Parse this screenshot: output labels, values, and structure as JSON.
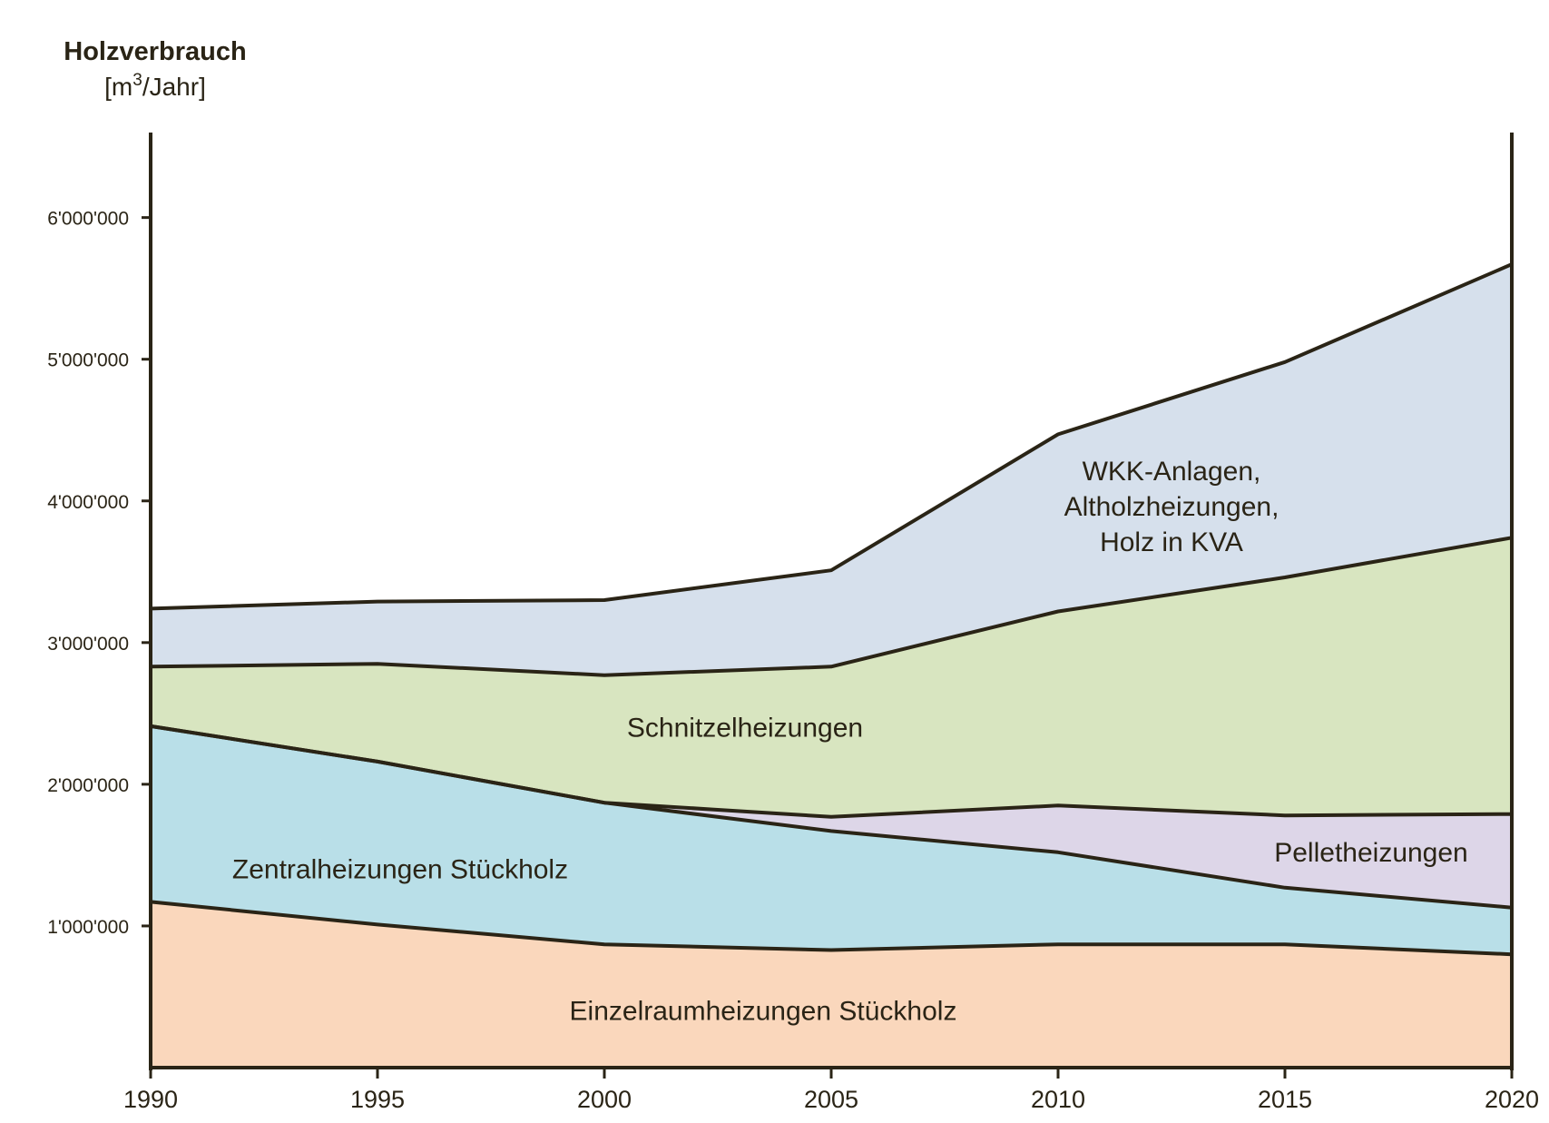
{
  "chart_data": {
    "type": "area",
    "stacked": true,
    "ytitle": "Holzverbrauch",
    "yunit": "[m³/Jahr]",
    "x": [
      1990,
      1995,
      2000,
      2005,
      2010,
      2015,
      2020
    ],
    "xticks": [
      "1990",
      "1995",
      "2000",
      "2005",
      "2010",
      "2015",
      "2020"
    ],
    "ylim": [
      0,
      6600000
    ],
    "yticks": [
      {
        "value": 1000000,
        "label": "1'000'000"
      },
      {
        "value": 2000000,
        "label": "2'000'000"
      },
      {
        "value": 3000000,
        "label": "3'000'000"
      },
      {
        "value": 4000000,
        "label": "4'000'000"
      },
      {
        "value": 5000000,
        "label": "5'000'000"
      },
      {
        "value": 6000000,
        "label": "6'000'000"
      }
    ],
    "grid": false,
    "legend": "inline labels",
    "series": [
      {
        "name": "Einzelraumheizungen Stückholz",
        "color": "#fad7bc",
        "values": [
          1170000,
          1010000,
          870000,
          830000,
          870000,
          870000,
          800000
        ]
      },
      {
        "name": "Zentralheizungen Stückholz",
        "color": "#b9dfe8",
        "values": [
          1240000,
          1150000,
          1000000,
          840000,
          650000,
          400000,
          330000
        ]
      },
      {
        "name": "Pelletheizungen",
        "color": "#ddd6e8",
        "values": [
          0,
          0,
          0,
          100000,
          330000,
          510000,
          660000
        ]
      },
      {
        "name": "Schnitzelheizungen",
        "color": "#d8e5c0",
        "values": [
          420000,
          690000,
          900000,
          1060000,
          1370000,
          1680000,
          1950000
        ]
      },
      {
        "name": "WKK-Anlagen, Altholzheizungen, Holz in KVA",
        "color": "#d6e0ec",
        "values": [
          410000,
          440000,
          530000,
          680000,
          1250000,
          1520000,
          1930000
        ]
      }
    ],
    "area_labels": [
      {
        "lines": [
          "Einzelraumheizungen Stückholz"
        ],
        "x": 2003.5,
        "y": 400000
      },
      {
        "lines": [
          "Zentralheizungen Stückholz"
        ],
        "x": 1995.5,
        "y": 1400000
      },
      {
        "lines": [
          "Pelletheizungen"
        ],
        "x": 2016.9,
        "y": 1520000
      },
      {
        "lines": [
          "Schnitzelheizungen"
        ],
        "x": 2003.1,
        "y": 2400000
      },
      {
        "lines": [
          "WKK-Anlagen,",
          "Altholzheizungen,",
          "Holz in KVA"
        ],
        "x": 2012.5,
        "y": 3960000
      }
    ],
    "line_color": "#2a2416"
  }
}
